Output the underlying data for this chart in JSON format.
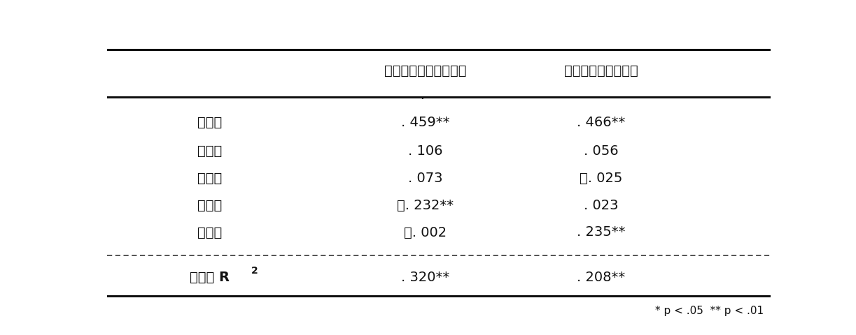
{
  "col_headers": [
    "",
    "担い手の役割期待違反",
    "政治過程の不透明性"
  ],
  "rows": [
    [
      "無力感",
      ". 459**",
      ". 466**"
    ],
    [
      "判断力",
      ". 106",
      ". 056"
    ],
    [
      "知　識",
      ". 073",
      "－. 025"
    ],
    [
      "影響力",
      "－. 232**",
      ". 023"
    ],
    [
      "正当性",
      "－. 002",
      ". 235**"
    ]
  ],
  "footer_label": "調整済 R",
  "footer_row": [
    ". 320**",
    ". 208**"
  ],
  "footnote": "* p < .05  ** p < .01",
  "bg_color": "#ffffff",
  "line_color": "#111111",
  "dashed_line_color": "#444444",
  "header_fontsize": 14,
  "body_fontsize": 14,
  "footer_fontsize": 12,
  "footnote_fontsize": 11
}
